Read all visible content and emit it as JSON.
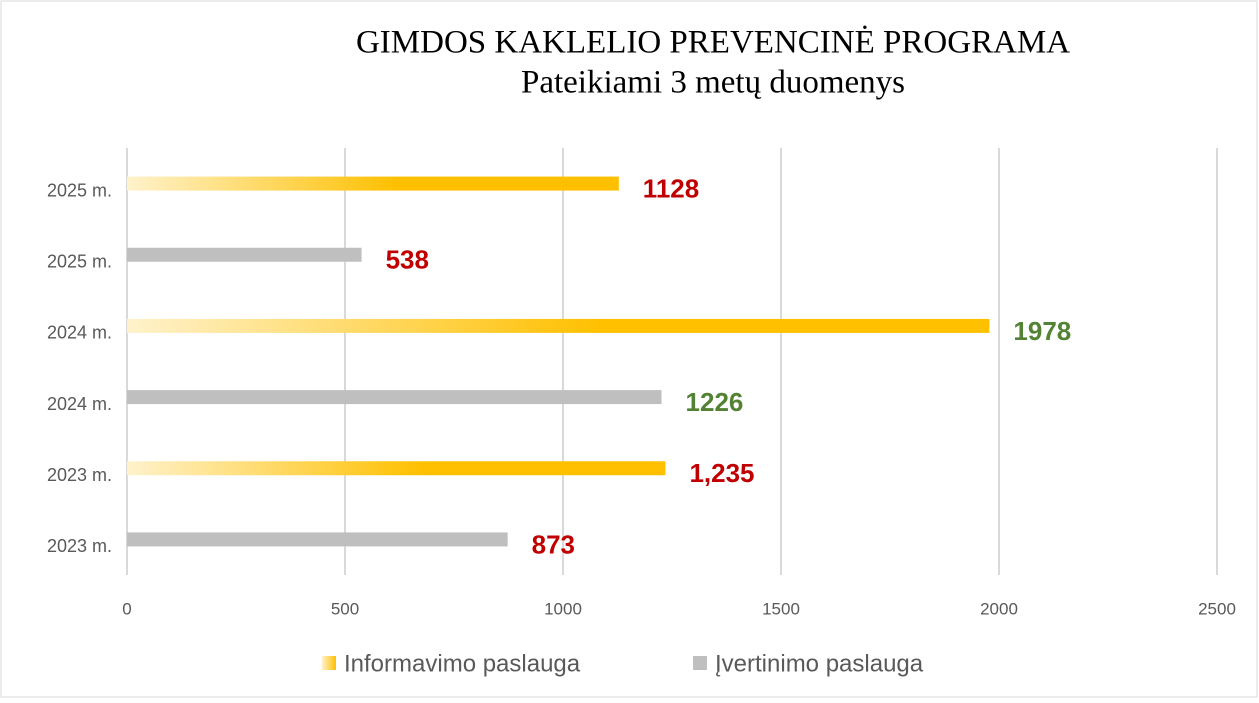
{
  "chart_data": {
    "type": "hbar",
    "title": "GIMDOS KAKLELIO PREVENCINĖ PROGRAMA",
    "subtitle": "Pateikiami 3 metų duomenys",
    "categories": [
      "2025 m.",
      "2025 m.",
      "2024 m.",
      "2024 m.",
      "2023 m.",
      "2023 m."
    ],
    "series": [
      {
        "name": "Informavimo paslauga",
        "color": "#ffc000",
        "values": [
          1128,
          null,
          1978,
          null,
          1235,
          null
        ],
        "value_labels": [
          "1128",
          null,
          "1978",
          null,
          "1,235",
          null
        ],
        "label_colors": [
          "#c00000",
          null,
          "#548235",
          null,
          "#c00000",
          null
        ]
      },
      {
        "name": "Įvertinimo paslauga",
        "color": "#bfbfbf",
        "values": [
          null,
          538,
          null,
          1226,
          null,
          873
        ],
        "value_labels": [
          null,
          "538",
          null,
          "1226",
          null,
          "873"
        ],
        "label_colors": [
          null,
          "#c00000",
          null,
          "#548235",
          null,
          "#c00000"
        ]
      }
    ],
    "xlim": [
      0,
      2500
    ],
    "xticks": [
      0,
      500,
      1000,
      1500,
      2000,
      2500
    ],
    "grid": true,
    "legend": "bottom"
  }
}
